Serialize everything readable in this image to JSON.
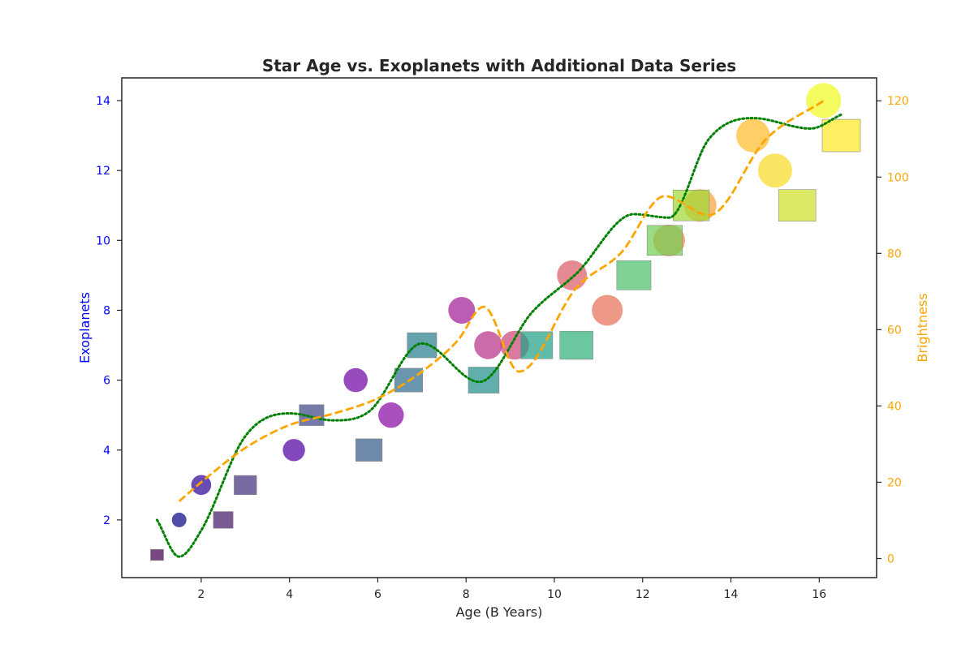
{
  "chart_data": {
    "type": "scatter",
    "title": "Star Age vs. Exoplanets with Additional Data Series",
    "xlabel": "Age (B Years)",
    "ylabel": "Exoplanets",
    "y2label": "Brightness",
    "xlim": [
      0.2,
      17.3
    ],
    "ylim": [
      0.35,
      14.65
    ],
    "y2lim": [
      -5,
      126
    ],
    "xticks": [
      2,
      4,
      6,
      8,
      10,
      12,
      14,
      16
    ],
    "yticks": [
      2,
      4,
      6,
      8,
      10,
      12,
      14
    ],
    "y2ticks": [
      0,
      20,
      40,
      60,
      80,
      100,
      120
    ],
    "grid": false,
    "colors": {
      "left_axis": "#0000ff",
      "right_axis": "#ffa500",
      "dotted_line": "#008000",
      "dashed_line": "#ffa500",
      "text": "#262626"
    },
    "series": [
      {
        "marker": "circle",
        "colormap": "plasma",
        "points": [
          {
            "x": 1.5,
            "y": 2
          },
          {
            "x": 2.0,
            "y": 3
          },
          {
            "x": 4.1,
            "y": 4
          },
          {
            "x": 5.5,
            "y": 6
          },
          {
            "x": 6.3,
            "y": 5
          },
          {
            "x": 7.9,
            "y": 8
          },
          {
            "x": 8.5,
            "y": 7
          },
          {
            "x": 9.1,
            "y": 7
          },
          {
            "x": 10.4,
            "y": 9
          },
          {
            "x": 11.2,
            "y": 8
          },
          {
            "x": 12.6,
            "y": 10
          },
          {
            "x": 13.3,
            "y": 11
          },
          {
            "x": 14.5,
            "y": 13
          },
          {
            "x": 15.0,
            "y": 12
          },
          {
            "x": 16.1,
            "y": 14
          }
        ]
      },
      {
        "marker": "square",
        "colormap": "viridis",
        "points": [
          {
            "x": 1.0,
            "y": 1
          },
          {
            "x": 2.5,
            "y": 2
          },
          {
            "x": 3.0,
            "y": 3
          },
          {
            "x": 4.5,
            "y": 5
          },
          {
            "x": 5.8,
            "y": 4
          },
          {
            "x": 6.7,
            "y": 6
          },
          {
            "x": 7.0,
            "y": 7
          },
          {
            "x": 8.4,
            "y": 6
          },
          {
            "x": 9.6,
            "y": 7
          },
          {
            "x": 10.5,
            "y": 7
          },
          {
            "x": 11.8,
            "y": 9
          },
          {
            "x": 12.5,
            "y": 10
          },
          {
            "x": 13.1,
            "y": 11
          },
          {
            "x": 15.5,
            "y": 11
          },
          {
            "x": 16.5,
            "y": 13
          }
        ]
      },
      {
        "style": "dotted",
        "axis": "left",
        "x": [
          1.0,
          1.5,
          2.0,
          3.0,
          4.0,
          5.0,
          5.8,
          7.0,
          8.3,
          9.5,
          10.5,
          11.8,
          12.6,
          13.5,
          14.5,
          15.8,
          16.5
        ],
        "y": [
          2.0,
          0.95,
          1.7,
          4.4,
          5.05,
          4.85,
          5.1,
          7.05,
          5.95,
          7.95,
          9.05,
          10.75,
          10.65,
          12.9,
          13.5,
          13.2,
          13.6
        ]
      },
      {
        "style": "dashed",
        "axis": "right",
        "x": [
          1.5,
          2.0,
          3.0,
          4.0,
          5.0,
          6.0,
          7.0,
          7.8,
          8.4,
          9.2,
          10.5,
          11.5,
          12.5,
          13.5,
          14.8,
          16.1
        ],
        "y": [
          15,
          20,
          29,
          35,
          38,
          42,
          49,
          57,
          66,
          49,
          71,
          80,
          95,
          90,
          110,
          120
        ]
      }
    ]
  }
}
